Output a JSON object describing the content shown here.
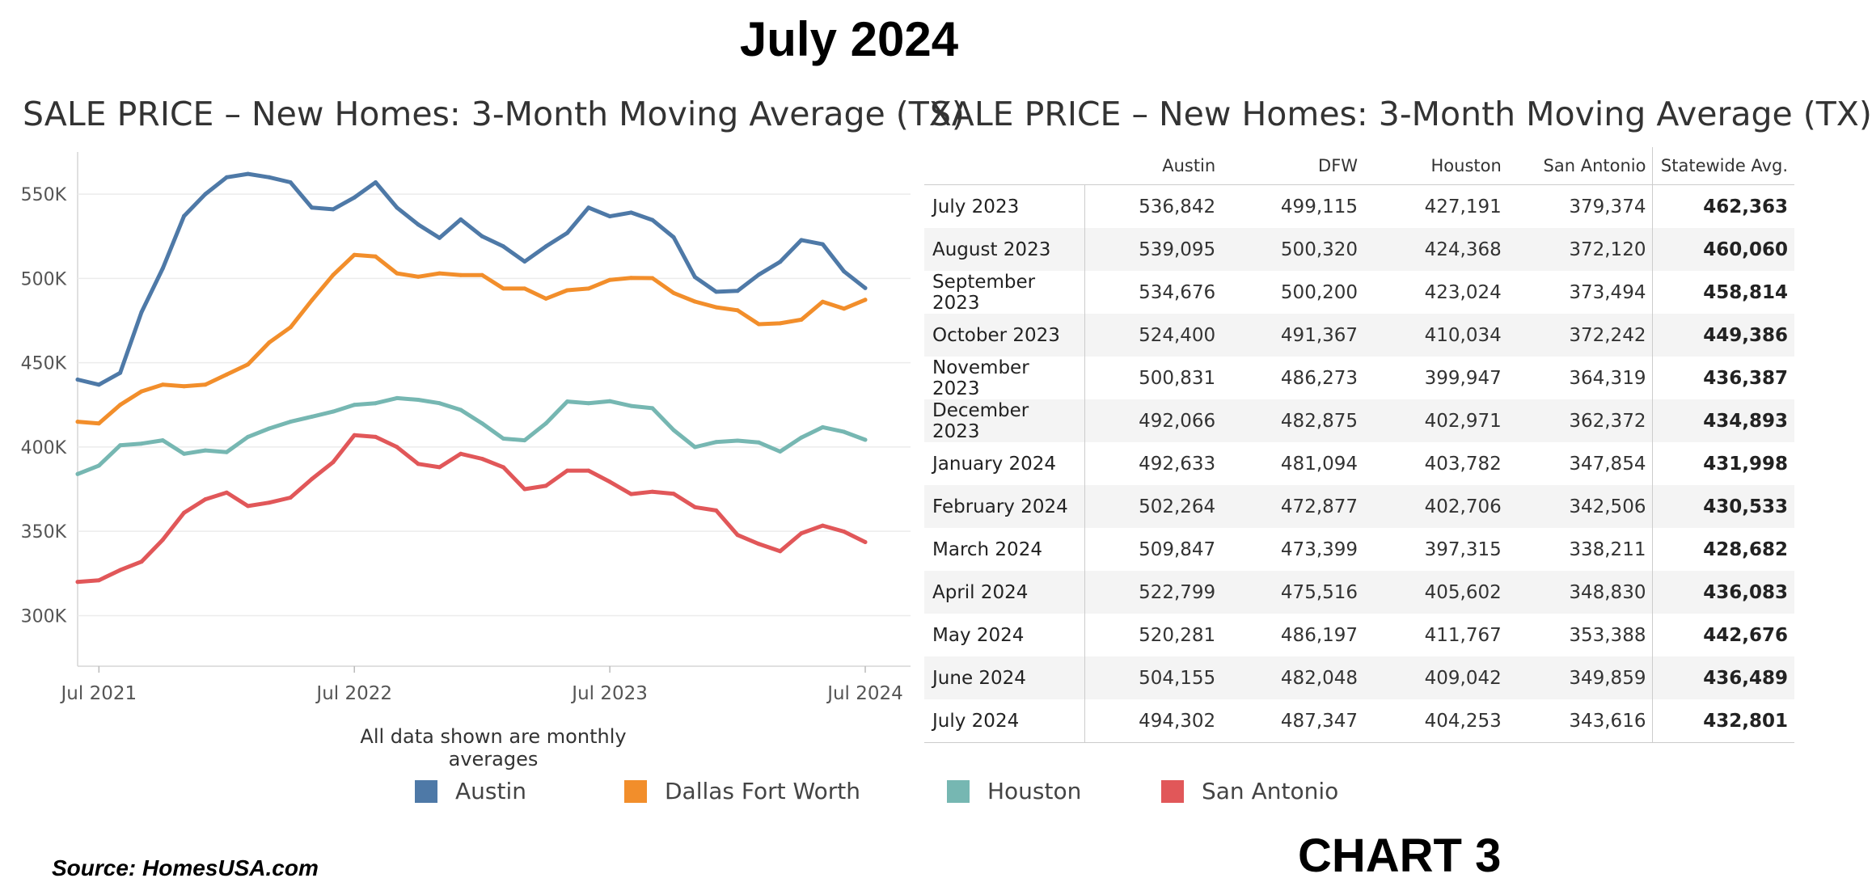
{
  "header": {
    "title": "July 2024"
  },
  "chart_data": [
    {
      "type": "line",
      "title": "SALE PRICE – New Homes: 3-Month Moving Average (TX)",
      "xlabel": "",
      "ylabel": "",
      "note": "All data shown are monthly averages",
      "x_tick_labels": [
        "Jul 2021",
        "Jul 2022",
        "Jul 2023",
        "Jul 2024"
      ],
      "y_tick_labels": [
        "300K",
        "350K",
        "400K",
        "450K",
        "500K",
        "550K"
      ],
      "y_ticks": [
        300000,
        350000,
        400000,
        450000,
        500000,
        550000
      ],
      "ylim": [
        270000,
        575000
      ],
      "x_months_since_jun2021": [
        0,
        1,
        2,
        3,
        4,
        5,
        6,
        7,
        8,
        9,
        10,
        11,
        12,
        13,
        14,
        15,
        16,
        17,
        18,
        19,
        20,
        21,
        22,
        23,
        24,
        25,
        26,
        27,
        28,
        29,
        30,
        31,
        32,
        33,
        34,
        35,
        36,
        37
      ],
      "series": [
        {
          "name": "Austin",
          "color": "#4e79a7",
          "values": [
            440000,
            437000,
            444000,
            480000,
            506000,
            537000,
            550000,
            560000,
            562000,
            560000,
            557000,
            542000,
            541000,
            548000,
            557000,
            542000,
            532000,
            524000,
            535000,
            525000,
            519000,
            510000,
            519000,
            527000,
            542000,
            536842,
            539095,
            534676,
            524400,
            500831,
            492066,
            492633,
            502264,
            509847,
            522799,
            520281,
            504155,
            494302
          ]
        },
        {
          "name": "Dallas Fort Worth",
          "color": "#f28e2b",
          "values": [
            415000,
            414000,
            425000,
            433000,
            437000,
            436000,
            437000,
            443000,
            449000,
            462000,
            471000,
            487000,
            502000,
            514000,
            513000,
            503000,
            501000,
            503000,
            502000,
            502000,
            494000,
            494000,
            488000,
            493000,
            494000,
            499115,
            500320,
            500200,
            491367,
            486273,
            482875,
            481094,
            472877,
            473399,
            475516,
            486197,
            482048,
            487347
          ]
        },
        {
          "name": "Houston",
          "color": "#76b7b2",
          "values": [
            384000,
            389000,
            401000,
            402000,
            404000,
            396000,
            398000,
            397000,
            406000,
            411000,
            415000,
            418000,
            421000,
            425000,
            426000,
            429000,
            428000,
            426000,
            422000,
            414000,
            405000,
            404000,
            414000,
            427000,
            426000,
            427191,
            424368,
            423024,
            410034,
            399947,
            402971,
            403782,
            402706,
            397315,
            405602,
            411767,
            409042,
            404253
          ]
        },
        {
          "name": "San Antonio",
          "color": "#e15759",
          "values": [
            320000,
            321000,
            327000,
            332000,
            345000,
            361000,
            369000,
            373000,
            365000,
            367000,
            370000,
            381000,
            391000,
            407000,
            406000,
            400000,
            390000,
            388000,
            396000,
            393000,
            388000,
            375000,
            377000,
            386000,
            386000,
            379374,
            372120,
            373494,
            372242,
            364319,
            362372,
            347854,
            342506,
            338211,
            348830,
            353388,
            349859,
            343616
          ]
        }
      ]
    },
    {
      "type": "table",
      "title": "SALE PRICE – New Homes: 3-Month Moving Average (TX)",
      "columns": [
        "",
        "Austin",
        "DFW",
        "Houston",
        "San Antonio",
        "Statewide Avg."
      ],
      "rows": [
        [
          "July 2023",
          "536,842",
          "499,115",
          "427,191",
          "379,374",
          "462,363"
        ],
        [
          "August 2023",
          "539,095",
          "500,320",
          "424,368",
          "372,120",
          "460,060"
        ],
        [
          "September 2023",
          "534,676",
          "500,200",
          "423,024",
          "373,494",
          "458,814"
        ],
        [
          "October 2023",
          "524,400",
          "491,367",
          "410,034",
          "372,242",
          "449,386"
        ],
        [
          "November 2023",
          "500,831",
          "486,273",
          "399,947",
          "364,319",
          "436,387"
        ],
        [
          "December 2023",
          "492,066",
          "482,875",
          "402,971",
          "362,372",
          "434,893"
        ],
        [
          "January 2024",
          "492,633",
          "481,094",
          "403,782",
          "347,854",
          "431,998"
        ],
        [
          "February 2024",
          "502,264",
          "472,877",
          "402,706",
          "342,506",
          "430,533"
        ],
        [
          "March 2024",
          "509,847",
          "473,399",
          "397,315",
          "338,211",
          "428,682"
        ],
        [
          "April 2024",
          "522,799",
          "475,516",
          "405,602",
          "348,830",
          "436,083"
        ],
        [
          "May 2024",
          "520,281",
          "486,197",
          "411,767",
          "353,388",
          "442,676"
        ],
        [
          "June 2024",
          "504,155",
          "482,048",
          "409,042",
          "349,859",
          "436,489"
        ],
        [
          "July 2024",
          "494,302",
          "487,347",
          "404,253",
          "343,616",
          "432,801"
        ]
      ]
    }
  ],
  "legend": [
    {
      "label": "Austin",
      "color": "#4e79a7"
    },
    {
      "label": "Dallas Fort Worth",
      "color": "#f28e2b"
    },
    {
      "label": "Houston",
      "color": "#76b7b2"
    },
    {
      "label": "San Antonio",
      "color": "#e15759"
    }
  ],
  "footer": {
    "source": "Source:  HomesUSA.com",
    "chart_label": "CHART 3"
  }
}
